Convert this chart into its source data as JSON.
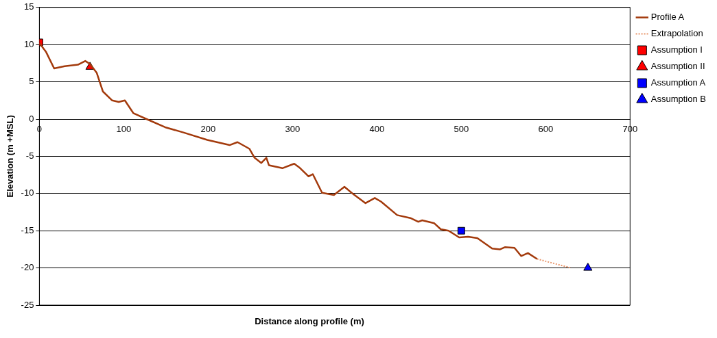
{
  "chart_data": {
    "type": "line",
    "xlabel": "Distance along profile (m)",
    "ylabel": "Elevation (m +MSL)",
    "xlim": [
      0,
      700
    ],
    "xticks": [
      0,
      100,
      200,
      300,
      400,
      500,
      600,
      700
    ],
    "ylim": [
      -25,
      15
    ],
    "yticks": [
      -25,
      -20,
      -15,
      -10,
      -5,
      0,
      5,
      10,
      15
    ],
    "grid": "y",
    "legend": "right",
    "series": [
      {
        "name": "Profile A",
        "color": "#a33a0c",
        "marker": "none",
        "line_style": "solid",
        "x": [
          0,
          8,
          17.5,
          30,
          45.7,
          54.4,
          60,
          68,
          75.3,
          86.3,
          94,
          101.3,
          111.3,
          127,
          149,
          170.7,
          199,
          225.4,
          234.8,
          249,
          255,
          263,
          269,
          272,
          288,
          302,
          308,
          319,
          324,
          335,
          349,
          361.5,
          371,
          386.5,
          397.5,
          405,
          424,
          439.7,
          449,
          453.7,
          468,
          475.6,
          485,
          497.5,
          508,
          519,
          536.6,
          546,
          552,
          563,
          571,
          579,
          589.8
        ],
        "values": [
          10.2,
          9.0,
          6.8,
          7.1,
          7.3,
          7.8,
          7.4,
          6.2,
          3.7,
          2.5,
          2.3,
          2.5,
          0.8,
          0,
          -1.1,
          -1.8,
          -2.8,
          -3.5,
          -3.1,
          -4.0,
          -5.2,
          -5.9,
          -5.2,
          -6.2,
          -6.6,
          -6.0,
          -6.5,
          -7.7,
          -7.4,
          -9.9,
          -10.2,
          -9.1,
          -10.0,
          -11.3,
          -10.6,
          -11.1,
          -12.9,
          -13.3,
          -13.8,
          -13.6,
          -14.0,
          -14.8,
          -15.0,
          -15.9,
          -15.8,
          -16.0,
          -17.4,
          -17.5,
          -17.2,
          -17.3,
          -18.4,
          -18.0,
          -18.8
        ]
      },
      {
        "name": "Extrapolation",
        "color": "#e8956a",
        "marker": "none",
        "line_style": "dotted",
        "x": [
          589.8,
          610,
          630.4
        ],
        "values": [
          -18.8,
          -19.4,
          -20.0
        ]
      },
      {
        "name": "Assumption I",
        "type": "scatter",
        "color": "#ff0000",
        "marker": "square",
        "x": [
          0
        ],
        "values": [
          10.3
        ]
      },
      {
        "name": "Assumption II",
        "type": "scatter",
        "color": "#ff0000",
        "marker": "triangle",
        "x": [
          60
        ],
        "values": [
          7
        ]
      },
      {
        "name": "Assumption A",
        "type": "scatter",
        "color": "#0000ff",
        "marker": "square",
        "x": [
          500
        ],
        "values": [
          -15
        ]
      },
      {
        "name": "Assumption B",
        "type": "scatter",
        "color": "#0000ff",
        "marker": "triangle",
        "x": [
          650
        ],
        "values": [
          -20
        ]
      }
    ]
  }
}
